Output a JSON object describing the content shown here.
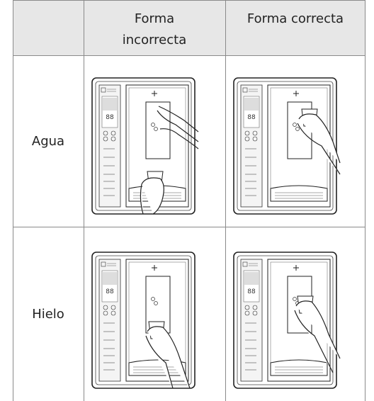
{
  "table": {
    "headers": [
      "Forma incorrecta",
      "Forma correcta"
    ],
    "rows": [
      {
        "label": "Agua"
      },
      {
        "label": "Hielo"
      }
    ]
  }
}
